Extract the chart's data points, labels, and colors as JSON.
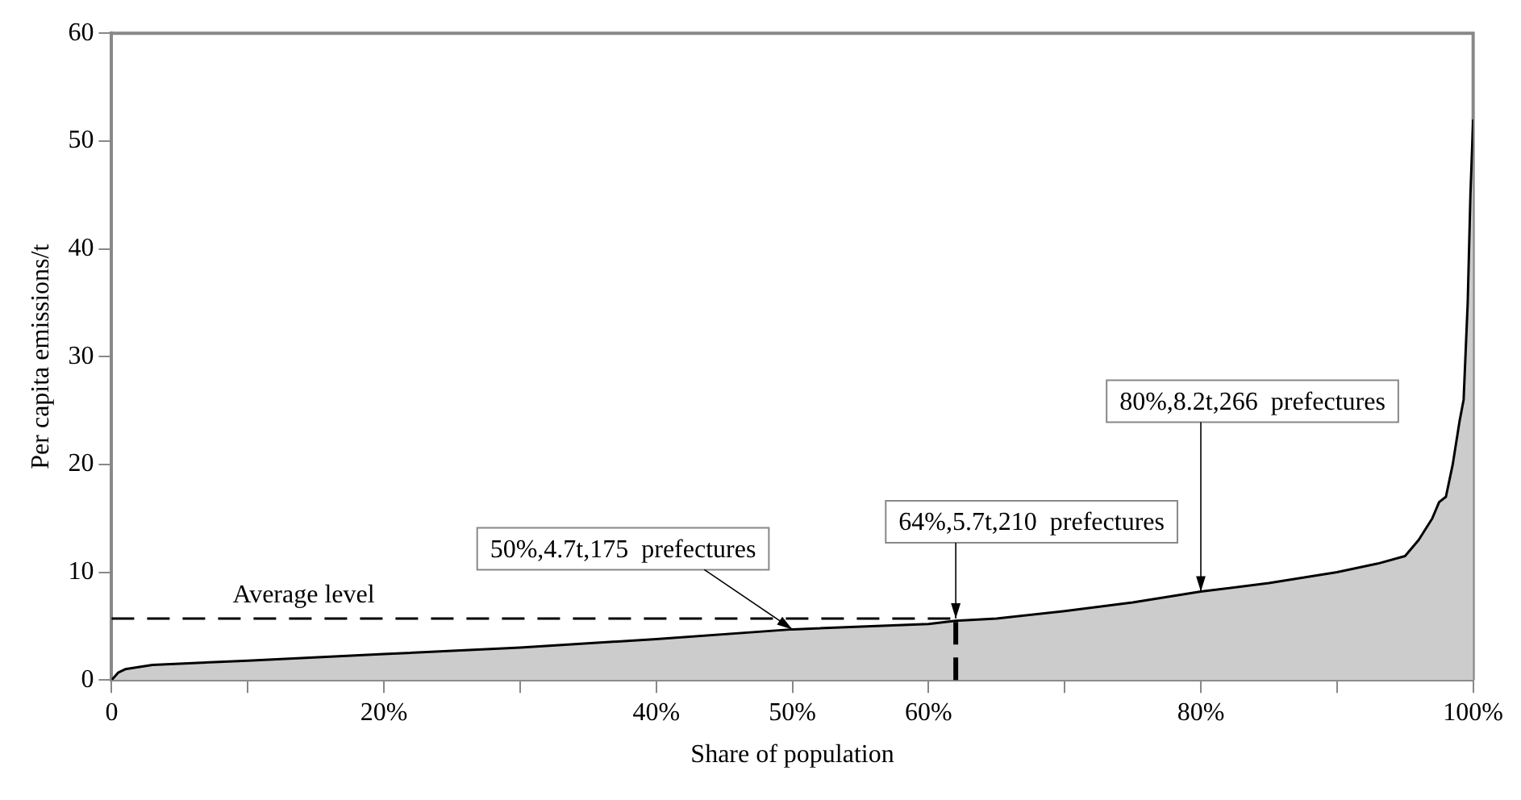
{
  "chart_data": {
    "type": "area",
    "xlabel": "Share of population",
    "ylabel": "Per capita emissions/t",
    "x": [
      0,
      0.5,
      1,
      3,
      10,
      20,
      30,
      40,
      50,
      60,
      62,
      65,
      70,
      75,
      80,
      85,
      90,
      93,
      95,
      96,
      97,
      97.5,
      98,
      98.5,
      99,
      99.3,
      99.6,
      99.8,
      100
    ],
    "series": [
      {
        "color": "#cccccc",
        "values": [
          0,
          0.7,
          1.0,
          1.4,
          1.8,
          2.4,
          3.0,
          3.8,
          4.7,
          5.2,
          5.5,
          5.7,
          6.4,
          7.2,
          8.2,
          9.0,
          10.0,
          10.8,
          11.5,
          13,
          15,
          16.5,
          17,
          20,
          24,
          26,
          35,
          45,
          52
        ]
      }
    ],
    "xlim": [
      0,
      100
    ],
    "ylim": [
      0,
      60
    ],
    "xticks": [
      0,
      {
        "value": 10,
        "label": null
      },
      {
        "value": 20,
        "label": "20%"
      },
      {
        "value": 30,
        "label": null
      },
      {
        "value": 40,
        "label": "40%"
      },
      {
        "value": 50,
        "label": "50%"
      },
      {
        "value": 60,
        "label": "60%"
      },
      {
        "value": 70,
        "label": null
      },
      {
        "value": 80,
        "label": "80%"
      },
      {
        "value": 90,
        "label": null
      },
      {
        "value": 100,
        "label": "100%"
      }
    ],
    "yticks": [
      0,
      10,
      20,
      30,
      40,
      50,
      60
    ],
    "ref_lines": [
      {
        "axis": "y",
        "value": 5.7,
        "label": "Average level",
        "line_style": "dashed"
      },
      {
        "axis": "x",
        "value": 62,
        "label": null,
        "line_style": "dashed"
      }
    ],
    "annotations": [
      {
        "text": "50%,4.7t,175  prefectures",
        "x": 50,
        "y": 4.7
      },
      {
        "text": "64%,5.7t,210  prefectures",
        "x": 62,
        "y": 5.7
      },
      {
        "text": "80%,8.2t,266  prefectures",
        "x": 80,
        "y": 8.2
      }
    ],
    "grid": false,
    "legend": false
  }
}
